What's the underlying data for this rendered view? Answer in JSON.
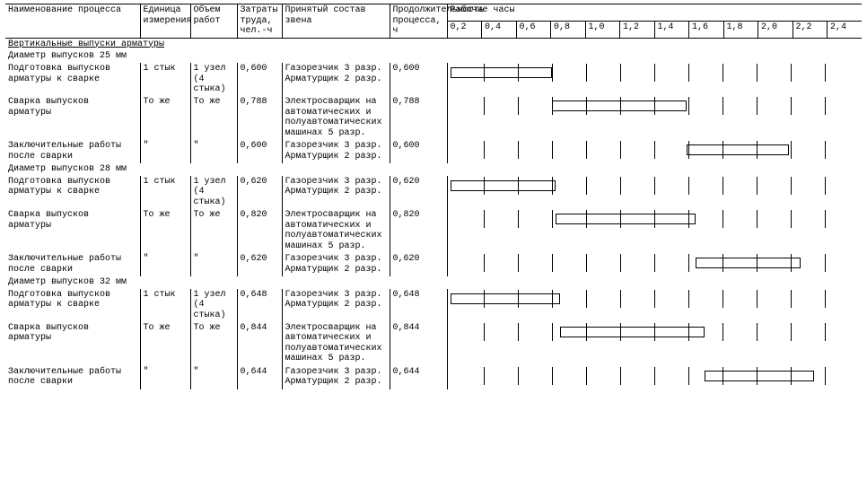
{
  "colors": {
    "fg": "#000000",
    "bg": "#ffffff"
  },
  "headers": {
    "name": "Наименование процесса",
    "unit": "Единица измерения",
    "volume": "Объем работ",
    "labor": "Затраты труда, чел.-ч",
    "crew": "Принятый состав звена",
    "duration": "Продолжительность процесса, ч",
    "hours": "Рабочие часы"
  },
  "ticks": [
    "0,2",
    "0,4",
    "0,6",
    "0,8",
    "1,0",
    "1,2",
    "1,4",
    "1,6",
    "1,8",
    "2,0",
    "2,2",
    "2,4"
  ],
  "chart": {
    "max": 2.4
  },
  "section": "Вертикальные выпуски арматуры",
  "groups": [
    {
      "title": "Диаметр выпусков 25 мм",
      "rows": [
        {
          "name": "Подготовка выпусков арматуры к сварке",
          "unit": "1 стык",
          "volume": "1 узел (4 стыка)",
          "labor": "0,600",
          "crew": "Газорезчик 3 разр. Арматурщик 2 разр.",
          "duration": "0,600",
          "bar": {
            "start": 0.0,
            "len": 0.6
          }
        },
        {
          "name": "Сварка выпусков арматуры",
          "unit": "То же",
          "volume": "То же",
          "labor": "0,788",
          "crew": "Электросварщик на автоматических и полуавтоматических машинах 5 разр.",
          "duration": "0,788",
          "bar": {
            "start": 0.6,
            "len": 0.788
          }
        },
        {
          "name": "Заключительные работы после сварки",
          "unit": "\"",
          "volume": "\"",
          "labor": "0,600",
          "crew": "Газорезчик 3 разр. Арматурщик 2 разр.",
          "duration": "0,600",
          "bar": {
            "start": 1.388,
            "len": 0.6
          }
        }
      ]
    },
    {
      "title": "Диаметр выпусков 28 мм",
      "rows": [
        {
          "name": "Подготовка выпусков арматуры к сварке",
          "unit": "1 стык",
          "volume": "1 узел (4 стыка)",
          "labor": "0,620",
          "crew": "Газорезчик 3 разр. Арматурщик 2 разр.",
          "duration": "0,620",
          "bar": {
            "start": 0.0,
            "len": 0.62
          }
        },
        {
          "name": "Сварка выпусков арматуры",
          "unit": "То же",
          "volume": "То же",
          "labor": "0,820",
          "crew": "Электросварщик на автоматических и полуавтоматических машинах 5 разр.",
          "duration": "0,820",
          "bar": {
            "start": 0.62,
            "len": 0.82
          }
        },
        {
          "name": "Заключительные работы после сварки",
          "unit": "\"",
          "volume": "\"",
          "labor": "0,620",
          "crew": "Газорезчик 3 разр. Арматурщик 2 разр.",
          "duration": "0,620",
          "bar": {
            "start": 1.44,
            "len": 0.62
          }
        }
      ]
    },
    {
      "title": "Диаметр выпусков 32 мм",
      "rows": [
        {
          "name": "Подготовка выпусков арматуры к сварке",
          "unit": "1 стык",
          "volume": "1 узел (4 стыка)",
          "labor": "0,648",
          "crew": "Газорезчик 3 разр. Арматурщик 2 разр.",
          "duration": "0,648",
          "bar": {
            "start": 0.0,
            "len": 0.648
          }
        },
        {
          "name": "Сварка выпусков арматуры",
          "unit": "То же",
          "volume": "То же",
          "labor": "0,844",
          "crew": "Электросварщик на автоматических и полуавтоматических машинах 5 разр.",
          "duration": "0,844",
          "bar": {
            "start": 0.648,
            "len": 0.844
          }
        },
        {
          "name": "Заключительные работы после сварки",
          "unit": "\"",
          "volume": "\"",
          "labor": "0,644",
          "crew": "Газорезчик 3 разр. Арматурщик 2 разр.",
          "duration": "0,644",
          "bar": {
            "start": 1.492,
            "len": 0.644
          }
        }
      ]
    }
  ]
}
